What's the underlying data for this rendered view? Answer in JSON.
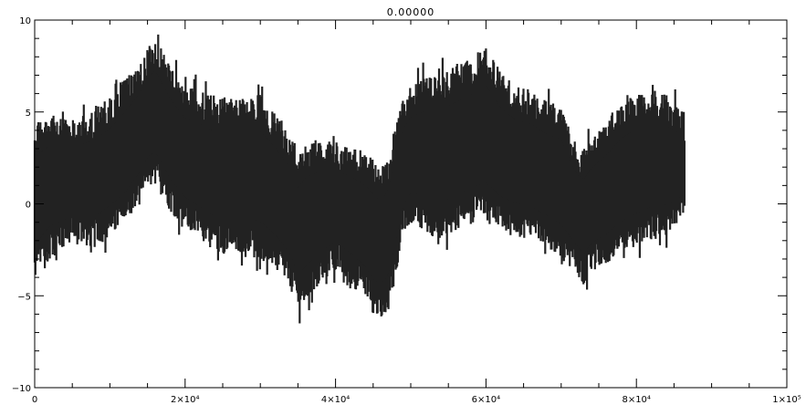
{
  "chart_data": {
    "type": "line",
    "title": "0.00000",
    "xlabel": "",
    "ylabel": "",
    "xlim": [
      0,
      100000
    ],
    "ylim": [
      -10,
      10
    ],
    "grid": false,
    "legend": "none",
    "x_tick_labels": [
      "0",
      "2×10⁴",
      "4×10⁴",
      "6×10⁴",
      "8×10⁴",
      "1×10⁵"
    ],
    "x_ticks": [
      0,
      20000,
      40000,
      60000,
      80000,
      100000
    ],
    "y_tick_labels": [
      "−10",
      "−5",
      "0",
      "5",
      "10"
    ],
    "y_ticks": [
      -10,
      -5,
      0,
      5,
      10
    ],
    "series": [
      {
        "color": "#222222",
        "x_range": [
          0,
          86400
        ],
        "envelope_x": [
          0,
          2000,
          5000,
          8000,
          10000,
          12000,
          14000,
          15000,
          16000,
          17000,
          18000,
          20000,
          22000,
          24000,
          26000,
          28000,
          30000,
          32000,
          34000,
          35000,
          36000,
          38000,
          40000,
          42000,
          44000,
          45000,
          46000,
          47000,
          48000,
          49000,
          50000,
          52000,
          54000,
          56000,
          58000,
          60000,
          62000,
          64000,
          66000,
          68000,
          70000,
          72000,
          73000,
          74000,
          76000,
          78000,
          80000,
          82000,
          84000,
          86400
        ],
        "envelope_upper": [
          4.5,
          5.0,
          4.6,
          5.2,
          5.8,
          6.8,
          7.8,
          8.6,
          9.1,
          8.3,
          7.5,
          6.4,
          6.2,
          5.8,
          6.0,
          5.8,
          6.0,
          5.0,
          3.8,
          2.8,
          3.4,
          3.6,
          3.4,
          3.2,
          2.8,
          2.4,
          2.0,
          2.6,
          4.6,
          5.8,
          6.4,
          7.0,
          7.2,
          7.6,
          8.0,
          8.6,
          7.2,
          6.4,
          6.2,
          5.6,
          5.4,
          3.2,
          3.0,
          3.6,
          4.4,
          5.4,
          6.0,
          6.2,
          6.0,
          5.0
        ],
        "envelope_lower": [
          -4.2,
          -3.0,
          -2.2,
          -2.4,
          -1.8,
          -1.2,
          0.0,
          0.8,
          1.0,
          0.4,
          -0.4,
          -1.4,
          -2.0,
          -2.6,
          -2.8,
          -2.6,
          -3.0,
          -3.6,
          -4.6,
          -5.8,
          -5.4,
          -4.4,
          -3.6,
          -4.4,
          -5.2,
          -6.0,
          -6.2,
          -5.8,
          -4.0,
          -1.8,
          -1.0,
          -1.6,
          -2.0,
          -1.6,
          -1.2,
          -1.0,
          -1.6,
          -1.8,
          -2.0,
          -2.4,
          -3.0,
          -3.8,
          -4.4,
          -3.8,
          -3.4,
          -2.8,
          -2.4,
          -2.0,
          -1.8,
          -0.8
        ]
      }
    ]
  }
}
